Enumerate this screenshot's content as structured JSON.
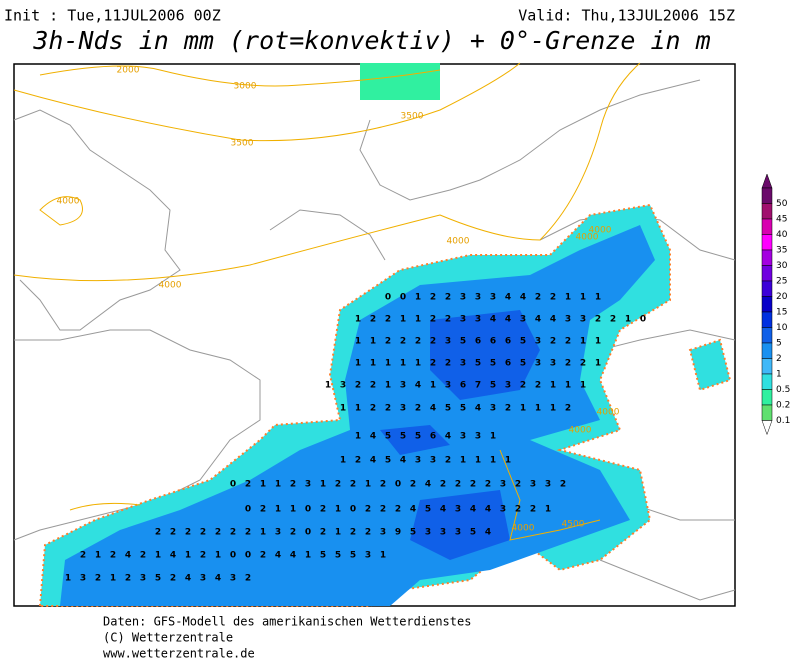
{
  "header": {
    "init": "Init : Tue,11JUL2006 00Z",
    "valid": "Valid: Thu,13JUL2006 15Z",
    "title": "3h-Nds in mm (rot=konvektiv) + 0°-Grenze in m"
  },
  "map": {
    "contour_labels": [
      "2000",
      "3000",
      "3500",
      "3500",
      "4000",
      "4000",
      "4000",
      "4000",
      "4000",
      "4000",
      "4000",
      "4000",
      "4500"
    ],
    "precip_rows": [
      [
        "0",
        "0",
        "1",
        "2",
        "2",
        "3",
        "3",
        "3",
        "4",
        "4",
        "2",
        "2",
        "1",
        "1",
        "1"
      ],
      [
        "1",
        "2",
        "2",
        "1",
        "1",
        "2",
        "2",
        "3",
        "3",
        "4",
        "4",
        "3",
        "4",
        "4",
        "3",
        "3",
        "2",
        "2",
        "1",
        "0"
      ],
      [
        "1",
        "1",
        "2",
        "2",
        "2",
        "2",
        "3",
        "5",
        "6",
        "6",
        "6",
        "5",
        "3",
        "2",
        "2",
        "1",
        "1"
      ],
      [
        "1",
        "1",
        "1",
        "1",
        "1",
        "2",
        "2",
        "3",
        "5",
        "5",
        "6",
        "5",
        "3",
        "3",
        "2",
        "2",
        "1"
      ],
      [
        "1",
        "3",
        "2",
        "2",
        "1",
        "3",
        "4",
        "1",
        "3",
        "6",
        "7",
        "5",
        "3",
        "2",
        "2",
        "1",
        "1",
        "1"
      ],
      [
        "1",
        "1",
        "2",
        "2",
        "3",
        "2",
        "4",
        "5",
        "5",
        "4",
        "3",
        "2",
        "1",
        "1",
        "1",
        "2"
      ],
      [
        "1",
        "4",
        "5",
        "5",
        "5",
        "6",
        "4",
        "3",
        "3",
        "1"
      ],
      [
        "1",
        "2",
        "4",
        "5",
        "4",
        "3",
        "3",
        "2",
        "1",
        "1",
        "1",
        "1"
      ],
      [
        "0",
        "2",
        "1",
        "1",
        "2",
        "3",
        "1",
        "2",
        "2",
        "1",
        "2",
        "0",
        "2",
        "4",
        "2",
        "2",
        "2",
        "2",
        "3",
        "2",
        "3",
        "3",
        "2"
      ],
      [
        "0",
        "2",
        "1",
        "1",
        "0",
        "2",
        "1",
        "0",
        "2",
        "2",
        "2",
        "4",
        "5",
        "4",
        "3",
        "4",
        "4",
        "3",
        "2",
        "2",
        "1"
      ],
      [
        "2",
        "2",
        "2",
        "2",
        "2",
        "2",
        "2",
        "1",
        "3",
        "2",
        "0",
        "2",
        "1",
        "2",
        "2",
        "3",
        "9",
        "5",
        "3",
        "3",
        "3",
        "5",
        "4"
      ],
      [
        "2",
        "1",
        "2",
        "4",
        "2",
        "1",
        "4",
        "1",
        "2",
        "1",
        "0",
        "0",
        "2",
        "4",
        "4",
        "1",
        "5",
        "5",
        "5",
        "3",
        "1"
      ],
      [
        "1",
        "3",
        "2",
        "1",
        "2",
        "3",
        "5",
        "2",
        "4",
        "3",
        "4",
        "3",
        "2"
      ]
    ]
  },
  "legend": {
    "items": [
      {
        "label": "50",
        "color": "#6a0a6a"
      },
      {
        "label": "45",
        "color": "#a0106e"
      },
      {
        "label": "40",
        "color": "#d800b0"
      },
      {
        "label": "35",
        "color": "#ff00ff"
      },
      {
        "label": "30",
        "color": "#a400e0"
      },
      {
        "label": "25",
        "color": "#7000e0"
      },
      {
        "label": "20",
        "color": "#3c00d8"
      },
      {
        "label": "15",
        "color": "#0800c8"
      },
      {
        "label": "10",
        "color": "#0030e0"
      },
      {
        "label": "5",
        "color": "#1060e8"
      },
      {
        "label": "2",
        "color": "#1890f0"
      },
      {
        "label": "1",
        "color": "#40b8f8"
      },
      {
        "label": "0.5",
        "color": "#30e0e0"
      },
      {
        "label": "0.2",
        "color": "#30f0a0"
      },
      {
        "label": "0.1",
        "color": "#60e070"
      }
    ]
  },
  "footer": {
    "line1": "Daten: GFS-Modell des amerikanischen Wetterdienstes",
    "line2": "(C) Wetterzentrale",
    "line3": "www.wetterzentrale.de"
  }
}
